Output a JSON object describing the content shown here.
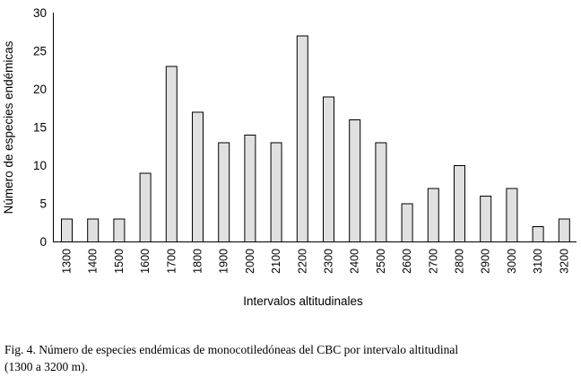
{
  "chart_data": {
    "type": "bar",
    "title": "",
    "xlabel": "Intervalos altitudinales",
    "ylabel": "Número de especies endémicas",
    "ylim": [
      0,
      30
    ],
    "yticks": [
      0,
      5,
      10,
      15,
      20,
      25,
      30
    ],
    "grid": false,
    "categories": [
      "1300",
      "1400",
      "1500",
      "1600",
      "1700",
      "1800",
      "1900",
      "2000",
      "2100",
      "2200",
      "2300",
      "2400",
      "2500",
      "2600",
      "2700",
      "2800",
      "2900",
      "3000",
      "3100",
      "3200"
    ],
    "values": [
      3,
      3,
      3,
      9,
      23,
      17,
      13,
      14,
      13,
      27,
      19,
      16,
      13,
      5,
      7,
      10,
      6,
      7,
      2,
      3
    ],
    "bar_color": "#e0e0e0",
    "bar_edge_color": "#000000"
  },
  "caption": {
    "line1": "Fig. 4. Número de especies endémicas de monocotiledóneas del CBC por intervalo altitudinal",
    "line2": "(1300 a 3200 m)."
  }
}
